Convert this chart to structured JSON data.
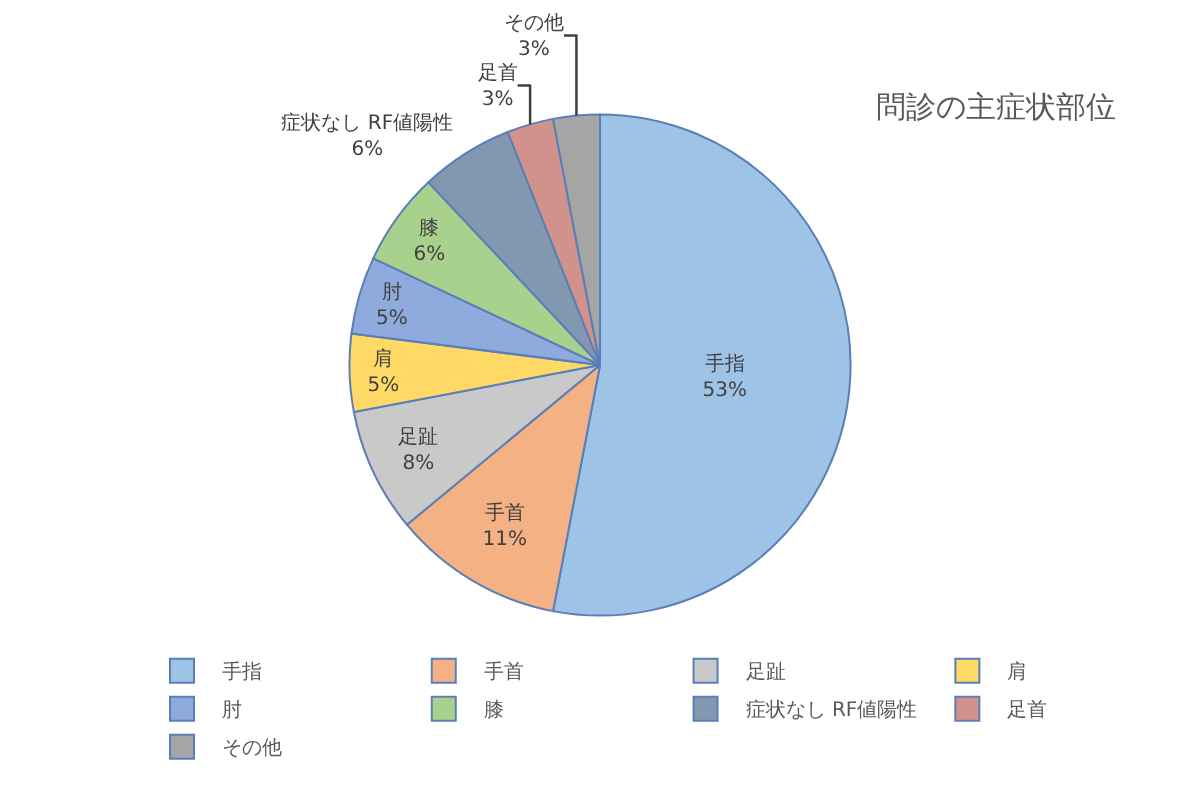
{
  "chart_data": {
    "type": "pie",
    "title": "問診の主症状部位",
    "categories": [
      "手指",
      "手首",
      "足趾",
      "肩",
      "肘",
      "膝",
      "症状なし RF値陽性",
      "足首",
      "その他"
    ],
    "values": [
      53,
      11,
      8,
      5,
      5,
      6,
      6,
      3,
      3
    ],
    "value_labels": [
      "53%",
      "11%",
      "8%",
      "5%",
      "5%",
      "6%",
      "6%",
      "3%",
      "3%"
    ],
    "colors": [
      "#9dc3e6",
      "#f4b183",
      "#c9c9c9",
      "#ffd966",
      "#8faadc",
      "#a9d18e",
      "#8497b0",
      "#d0928a",
      "#a5a5a5"
    ],
    "legend": "bottom"
  }
}
